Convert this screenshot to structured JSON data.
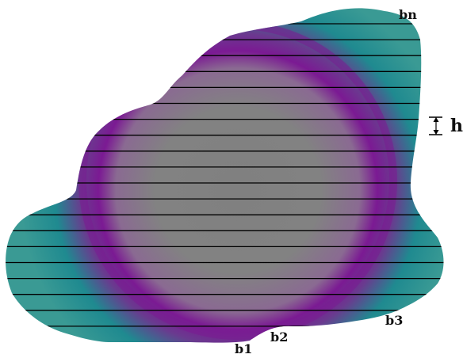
{
  "diagram": {
    "labels": {
      "b1": "b1",
      "b2": "b2",
      "b3": "b3",
      "bn": "bn",
      "h": "h"
    },
    "colors": {
      "background": "#ffffff",
      "center": "#808080",
      "purple_ring": "#7b1a93",
      "teal_edge": "#1f8a90",
      "lines": "#000000"
    }
  }
}
